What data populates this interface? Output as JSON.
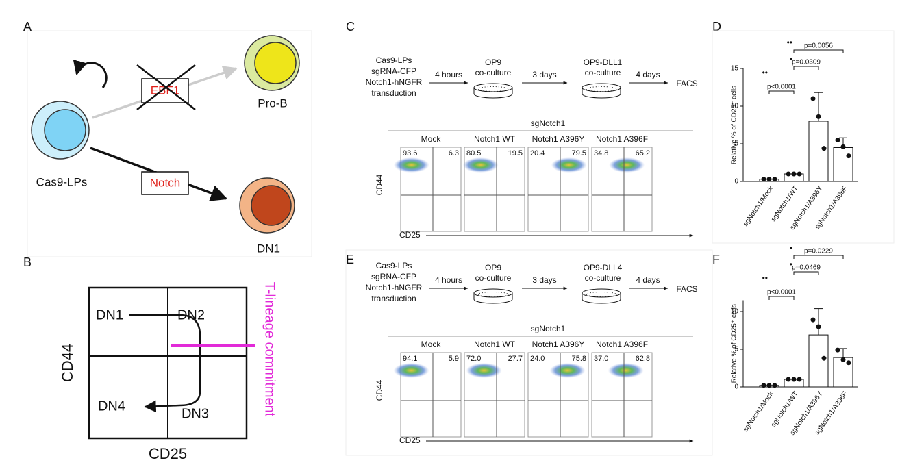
{
  "figure": {
    "A": {
      "label": "A",
      "cas9": "Cas9-LPs",
      "prob": "Pro-B",
      "dn1": "DN1",
      "ebf1": "EBF1",
      "notch": "Notch"
    },
    "B": {
      "label": "B",
      "quadrants": [
        "DN1",
        "DN2",
        "DN3",
        "DN4"
      ],
      "x_label": "CD25",
      "y_label": "CD44",
      "commitment": "T-lineage commitment"
    },
    "C": {
      "label": "C",
      "start": [
        "Cas9-LPs",
        "sgRNA-CFP",
        "Notch1-hNGFR",
        "transduction"
      ],
      "step1": "4 hours",
      "dish1": [
        "OP9",
        "co-culture"
      ],
      "step2": "3 days",
      "dish2": [
        "OP9-DLL1",
        "co-culture"
      ],
      "step3": "4 days",
      "end": "FACS",
      "group": "sgNotch1",
      "y_label": "CD44",
      "x_label": "CD25",
      "plots": [
        {
          "name": "Mock",
          "left": "93.6",
          "right": "6.3"
        },
        {
          "name": "Notch1 WT",
          "left": "80.5",
          "right": "19.5"
        },
        {
          "name": "Notch1 A396Y",
          "left": "20.4",
          "right": "79.5"
        },
        {
          "name": "Notch1 A396F",
          "left": "34.8",
          "right": "65.2"
        }
      ]
    },
    "E": {
      "label": "E",
      "start": [
        "Cas9-LPs",
        "sgRNA-CFP",
        "Notch1-hNGFR",
        "transduction"
      ],
      "step1": "4 hours",
      "dish1": [
        "OP9",
        "co-culture"
      ],
      "step2": "3 days",
      "dish2": [
        "OP9-DLL4",
        "co-culture"
      ],
      "step3": "4 days",
      "end": "FACS",
      "group": "sgNotch1",
      "y_label": "CD44",
      "x_label": "CD25",
      "plots": [
        {
          "name": "Mock",
          "left": "94.1",
          "right": "5.9"
        },
        {
          "name": "Notch1 WT",
          "left": "72.0",
          "right": "27.7"
        },
        {
          "name": "Notch1 A396Y",
          "left": "24.0",
          "right": "75.8"
        },
        {
          "name": "Notch1 A396F",
          "left": "37.0",
          "right": "62.8"
        }
      ]
    },
    "D": {
      "label": "D"
    },
    "F": {
      "label": "F"
    }
  },
  "chart_data": [
    {
      "type": "bar",
      "ylabel": "Relative % of CD25⁺ cells",
      "categories": [
        "sgNotch1/Mock",
        "sgNotch1/WT",
        "sgNotch1/A396Y",
        "sgNotch1/A396F"
      ],
      "values": [
        0.3,
        1.0,
        8.0,
        4.5
      ],
      "errors": [
        0,
        0,
        3.8,
        1.3
      ],
      "points": [
        [
          0.3,
          0.3,
          0.3
        ],
        [
          1.0,
          1.0,
          1.0
        ],
        [
          11.0,
          8.6,
          4.4
        ],
        [
          5.5,
          4.6,
          3.4
        ]
      ],
      "color": "#ffffff",
      "ylim": [
        0,
        15
      ],
      "yticks": [
        0,
        5,
        10,
        15
      ],
      "annotations": [
        {
          "stars": "••",
          "text": "p<0.0001"
        },
        {
          "stars": "•",
          "text": "p=0.0309"
        },
        {
          "stars": "••",
          "text": "p=0.0056"
        }
      ]
    },
    {
      "type": "bar",
      "ylabel": "Relative % of CD25⁺ cells",
      "categories": [
        "sgNotch1/Mock",
        "sgNotch1/WT",
        "sgNotch1/A396Y",
        "sgNotch1/A396F"
      ],
      "values": [
        0.2,
        1.0,
        6.9,
        3.9
      ],
      "errors": [
        0,
        0,
        3.5,
        1.2
      ],
      "points": [
        [
          0.2,
          0.2,
          0.2
        ],
        [
          1.0,
          1.0,
          1.0
        ],
        [
          8.9,
          8.0,
          3.8
        ],
        [
          4.9,
          3.6,
          3.2
        ]
      ],
      "color": "#ffffff",
      "ylim": [
        0,
        11.5
      ],
      "yticks": [
        0,
        5,
        10
      ],
      "annotations": [
        {
          "stars": "••",
          "text": "p<0.0001"
        },
        {
          "stars": "•",
          "text": "p=0.0469"
        },
        {
          "stars": "•",
          "text": "p=0.0229"
        }
      ]
    }
  ]
}
